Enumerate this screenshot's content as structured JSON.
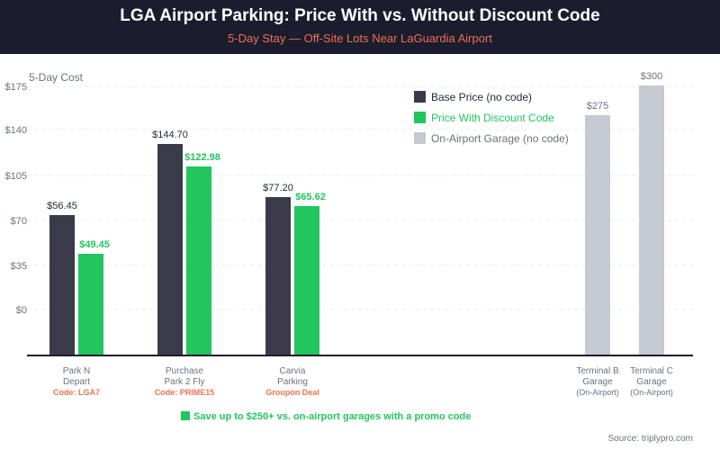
{
  "header": {
    "title": "LGA Airport Parking: Price With vs. Without Discount Code",
    "subtitle": "5-Day Stay — Off-Site Lots Near LaGuardia Airport"
  },
  "chart_data": {
    "type": "bar",
    "ylabel": "5-Day Cost",
    "y_ticks": [
      "$175",
      "$140",
      "$105",
      "$70",
      "$35",
      "$0"
    ],
    "grid": true,
    "legend_position": "top-right",
    "legend": [
      {
        "name": "Base Price (no code)",
        "color": "#3b3a4a"
      },
      {
        "name": "Price With Discount Code",
        "color": "#22c55e"
      },
      {
        "name": "On-Airport Garage (no code)",
        "color": "#c5c9d2"
      }
    ],
    "categories": [
      {
        "line1": "Park N",
        "line2": "Depart",
        "note": "Code: LGA7",
        "base": 56.45,
        "discount": 49.45,
        "base_label": "$56.45",
        "discount_label": "$49.45"
      },
      {
        "line1": "Purchase",
        "line2": "Park 2 Fly",
        "note": "Code: PRIME15",
        "base": 144.7,
        "discount": 122.98,
        "base_label": "$144.70",
        "discount_label": "$122.98"
      },
      {
        "line1": "Carvia",
        "line2": "Parking",
        "note": "Groupon Deal",
        "base": 77.2,
        "discount": 65.62,
        "base_label": "$77.20",
        "discount_label": "$65.62"
      },
      {
        "line1": "Terminal B",
        "line2": "Garage",
        "note": "(On-Airport)",
        "airport": 275,
        "airport_label": "$275"
      },
      {
        "line1": "Terminal C",
        "line2": "Garage",
        "note": "(On-Airport)",
        "airport": 300,
        "airport_label": "$300"
      }
    ],
    "annotation": "Save up to $250+ vs. on-airport garages with a promo code",
    "source": "Source: triplypro.com"
  }
}
